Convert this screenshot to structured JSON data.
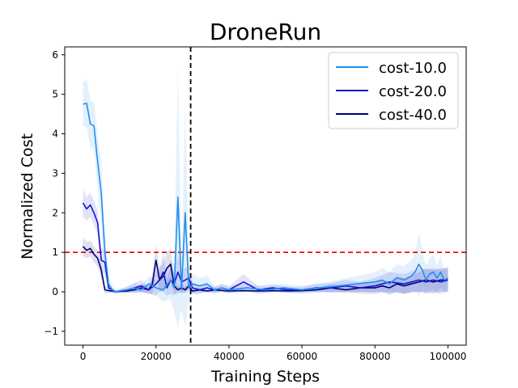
{
  "chart_data": {
    "type": "line",
    "title": "DroneRun",
    "xlabel": "Training Steps",
    "ylabel": "Normalized Cost",
    "xlim": [
      -5000,
      105000
    ],
    "ylim": [
      -1.35,
      6.2
    ],
    "xticks": [
      0,
      20000,
      40000,
      60000,
      80000,
      100000
    ],
    "xtick_labels": [
      "0",
      "20000",
      "40000",
      "60000",
      "80000",
      "100000"
    ],
    "yticks": [
      -1,
      0,
      1,
      2,
      3,
      4,
      5,
      6
    ],
    "ytick_labels": [
      "−1",
      "0",
      "1",
      "2",
      "3",
      "4",
      "5",
      "6"
    ],
    "legend_position": "top-right",
    "threshold": {
      "y": 1.0,
      "color": "#dd0000",
      "style": "dashed"
    },
    "vline": {
      "x": 29500,
      "color": "#000000",
      "style": "dashed"
    },
    "series": [
      {
        "name": "cost-10.0",
        "color": "#1f8fef",
        "x": [
          0,
          1000,
          2000,
          3000,
          4000,
          5000,
          6000,
          7000,
          8000,
          9000,
          10000,
          12000,
          14000,
          16000,
          18000,
          20000,
          22000,
          24000,
          25000,
          26000,
          27000,
          28000,
          29000,
          30000,
          32000,
          34000,
          36000,
          38000,
          40000,
          45000,
          50000,
          55000,
          60000,
          65000,
          70000,
          75000,
          80000,
          82000,
          84000,
          86000,
          88000,
          90000,
          91000,
          92000,
          93000,
          94000,
          95000,
          96000,
          97000,
          98000,
          99000,
          100000
        ],
        "values": [
          4.75,
          4.77,
          4.25,
          4.2,
          3.3,
          2.5,
          1.0,
          0.2,
          0.05,
          0.0,
          0.02,
          0.05,
          0.1,
          0.05,
          0.2,
          0.1,
          0.05,
          0.3,
          0.1,
          2.4,
          0.05,
          2.0,
          0.1,
          0.2,
          0.15,
          0.2,
          0.05,
          0.1,
          0.05,
          0.1,
          0.05,
          0.1,
          0.05,
          0.1,
          0.15,
          0.2,
          0.25,
          0.3,
          0.2,
          0.35,
          0.3,
          0.4,
          0.5,
          0.7,
          0.55,
          0.3,
          0.45,
          0.5,
          0.35,
          0.5,
          0.3,
          0.35
        ],
        "band": [
          0.55,
          0.6,
          0.6,
          0.6,
          0.7,
          0.8,
          0.5,
          0.2,
          0.1,
          0.05,
          0.05,
          0.08,
          0.12,
          0.1,
          0.2,
          0.2,
          0.3,
          0.5,
          0.6,
          3.3,
          0.5,
          2.9,
          0.4,
          0.25,
          0.2,
          0.2,
          0.1,
          0.1,
          0.1,
          0.1,
          0.08,
          0.1,
          0.1,
          0.12,
          0.15,
          0.2,
          0.25,
          0.3,
          0.3,
          0.35,
          0.35,
          0.4,
          0.5,
          0.8,
          0.5,
          0.35,
          0.4,
          0.45,
          0.35,
          0.4,
          0.3,
          0.3
        ]
      },
      {
        "name": "cost-20.0",
        "color": "#1414d4",
        "x": [
          0,
          1000,
          2000,
          3000,
          4000,
          5000,
          6000,
          7000,
          8000,
          9000,
          10000,
          12000,
          14000,
          16000,
          18000,
          20000,
          21000,
          22000,
          23000,
          24000,
          25000,
          26000,
          27000,
          28000,
          29000,
          30000,
          32000,
          34000,
          36000,
          38000,
          40000,
          44000,
          48000,
          52000,
          56000,
          60000,
          64000,
          68000,
          72000,
          76000,
          80000,
          84000,
          88000,
          92000,
          94000,
          96000,
          98000,
          100000
        ],
        "values": [
          2.25,
          2.1,
          2.2,
          2.0,
          1.75,
          0.8,
          0.75,
          0.1,
          0.05,
          0.0,
          0.02,
          0.05,
          0.1,
          0.15,
          0.05,
          0.2,
          0.3,
          0.5,
          0.1,
          0.3,
          0.2,
          0.5,
          0.25,
          0.3,
          0.35,
          0.1,
          0.05,
          0.1,
          0.05,
          0.1,
          0.05,
          0.25,
          0.05,
          0.1,
          0.05,
          0.05,
          0.1,
          0.1,
          0.15,
          0.1,
          0.15,
          0.25,
          0.2,
          0.3,
          0.25,
          0.3,
          0.25,
          0.3
        ],
        "band": [
          0.35,
          0.3,
          0.3,
          0.3,
          0.3,
          0.3,
          0.3,
          0.1,
          0.05,
          0.03,
          0.05,
          0.08,
          0.12,
          0.15,
          0.1,
          0.3,
          0.3,
          0.5,
          0.2,
          0.35,
          0.3,
          0.45,
          0.3,
          0.3,
          0.3,
          0.15,
          0.1,
          0.1,
          0.08,
          0.1,
          0.08,
          0.2,
          0.1,
          0.1,
          0.08,
          0.08,
          0.1,
          0.12,
          0.15,
          0.15,
          0.2,
          0.25,
          0.25,
          0.3,
          0.3,
          0.3,
          0.3,
          0.3
        ]
      },
      {
        "name": "cost-40.0",
        "color": "#00007a",
        "x": [
          0,
          1000,
          2000,
          3000,
          4000,
          5000,
          6000,
          7000,
          8000,
          9000,
          10000,
          12000,
          14000,
          16000,
          18000,
          19000,
          20000,
          21000,
          22000,
          23000,
          24000,
          25000,
          26000,
          27000,
          28000,
          29000,
          30000,
          32000,
          34000,
          36000,
          40000,
          44000,
          48000,
          52000,
          56000,
          60000,
          64000,
          68000,
          72000,
          76000,
          80000,
          82000,
          84000,
          86000,
          88000,
          90000,
          92000,
          94000,
          96000,
          98000,
          100000
        ],
        "values": [
          1.15,
          1.05,
          1.1,
          0.95,
          0.85,
          0.55,
          0.05,
          0.03,
          0.02,
          0.0,
          0.01,
          0.02,
          0.05,
          0.1,
          0.05,
          0.2,
          0.8,
          0.3,
          0.4,
          0.6,
          0.7,
          0.15,
          0.05,
          0.1,
          0.05,
          0.15,
          0.02,
          0.05,
          0.02,
          0.05,
          0.02,
          0.03,
          0.02,
          0.03,
          0.02,
          0.03,
          0.05,
          0.1,
          0.05,
          0.1,
          0.1,
          0.15,
          0.1,
          0.2,
          0.15,
          0.2,
          0.25,
          0.3,
          0.25,
          0.3,
          0.3
        ],
        "band": [
          0.25,
          0.2,
          0.2,
          0.2,
          0.2,
          0.2,
          0.1,
          0.05,
          0.03,
          0.02,
          0.02,
          0.03,
          0.05,
          0.1,
          0.1,
          0.25,
          0.4,
          0.3,
          0.35,
          0.4,
          0.4,
          0.2,
          0.1,
          0.1,
          0.08,
          0.1,
          0.03,
          0.05,
          0.03,
          0.05,
          0.03,
          0.03,
          0.03,
          0.03,
          0.03,
          0.03,
          0.05,
          0.1,
          0.08,
          0.1,
          0.12,
          0.15,
          0.15,
          0.2,
          0.2,
          0.2,
          0.25,
          0.3,
          0.3,
          0.3,
          0.3
        ]
      }
    ]
  }
}
